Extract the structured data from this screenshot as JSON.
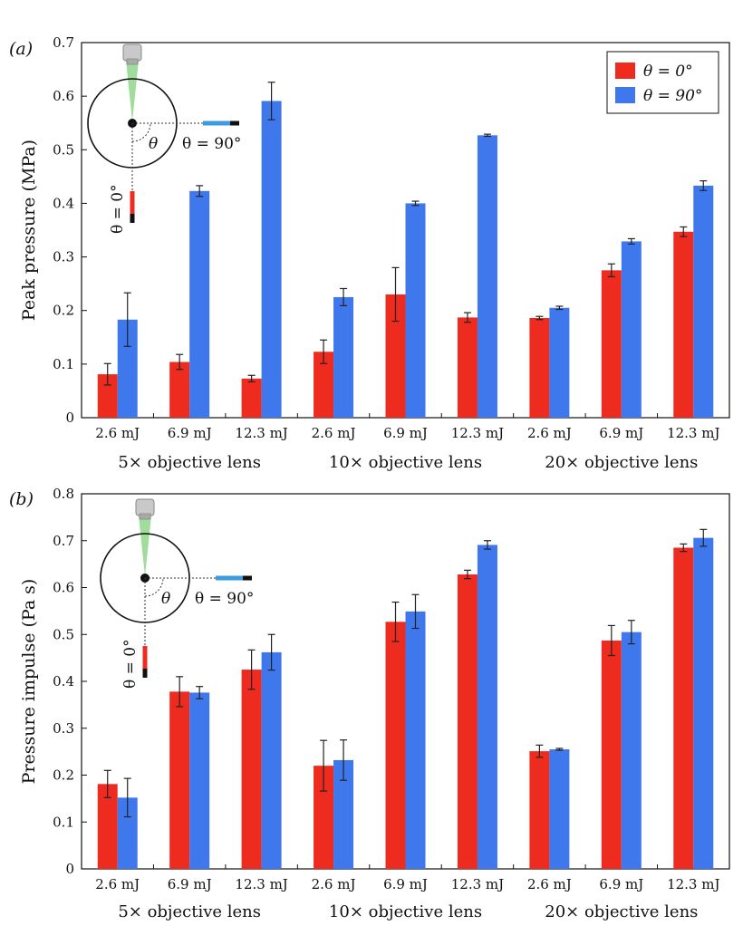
{
  "chart_data": [
    {
      "type": "bar",
      "panel_label": "(a)",
      "ylabel": "Peak pressure (MPa)",
      "ylim": [
        0,
        0.7
      ],
      "yticks": [
        0,
        0.1,
        0.2,
        0.3,
        0.4,
        0.5,
        0.6,
        0.7
      ],
      "ytick_labels": [
        "0",
        "0.1",
        "0.2",
        "0.3",
        "0.4",
        "0.5",
        "0.6",
        "0.7"
      ],
      "categories": [
        "2.6 mJ",
        "6.9 mJ",
        "12.3 mJ",
        "2.6 mJ",
        "6.9 mJ",
        "12.3 mJ",
        "2.6 mJ",
        "6.9 mJ",
        "12.3 mJ"
      ],
      "groups": [
        "5× objective lens",
        "10× objective lens",
        "20× objective lens"
      ],
      "legend_position": "top-right",
      "series": [
        {
          "name": "θ = 0°",
          "color": "#ee2b1f",
          "values": [
            0.081,
            0.104,
            0.073,
            0.123,
            0.23,
            0.187,
            0.186,
            0.275,
            0.347
          ],
          "errors": [
            0.02,
            0.014,
            0.006,
            0.022,
            0.05,
            0.009,
            0.003,
            0.012,
            0.009
          ]
        },
        {
          "name": "θ = 90°",
          "color": "#3f78ec",
          "values": [
            0.183,
            0.423,
            0.591,
            0.225,
            0.4,
            0.527,
            0.205,
            0.329,
            0.433
          ],
          "errors": [
            0.05,
            0.01,
            0.035,
            0.016,
            0.004,
            0.002,
            0.003,
            0.005,
            0.009
          ]
        }
      ],
      "inset": {
        "label_horizontal": "θ = 90°",
        "label_vertical": "θ = 0°",
        "label_angle": "θ"
      }
    },
    {
      "type": "bar",
      "panel_label": "(b)",
      "ylabel": "Pressure impulse (Pa s)",
      "ylim": [
        0,
        0.8
      ],
      "yticks": [
        0,
        0.1,
        0.2,
        0.3,
        0.4,
        0.5,
        0.6,
        0.7,
        0.8
      ],
      "ytick_labels": [
        "0",
        "0.1",
        "0.2",
        "0.3",
        "0.4",
        "0.5",
        "0.6",
        "0.7",
        "0.8"
      ],
      "categories": [
        "2.6 mJ",
        "6.9 mJ",
        "12.3 mJ",
        "2.6 mJ",
        "6.9 mJ",
        "12.3 mJ",
        "2.6 mJ",
        "6.9 mJ",
        "12.3 mJ"
      ],
      "groups": [
        "5× objective lens",
        "10× objective lens",
        "20× objective lens"
      ],
      "series": [
        {
          "name": "θ = 0°",
          "color": "#ee2b1f",
          "values": [
            0.181,
            0.378,
            0.425,
            0.22,
            0.527,
            0.628,
            0.251,
            0.487,
            0.685
          ],
          "errors": [
            0.029,
            0.032,
            0.042,
            0.054,
            0.042,
            0.009,
            0.013,
            0.032,
            0.008
          ]
        },
        {
          "name": "θ = 90°",
          "color": "#3f78ec",
          "values": [
            0.152,
            0.376,
            0.462,
            0.232,
            0.549,
            0.691,
            0.255,
            0.505,
            0.706
          ],
          "errors": [
            0.041,
            0.013,
            0.038,
            0.043,
            0.036,
            0.009,
            0.002,
            0.025,
            0.018
          ]
        }
      ],
      "inset": {
        "label_horizontal": "θ = 90°",
        "label_vertical": "θ = 0°",
        "label_angle": "θ"
      }
    }
  ]
}
